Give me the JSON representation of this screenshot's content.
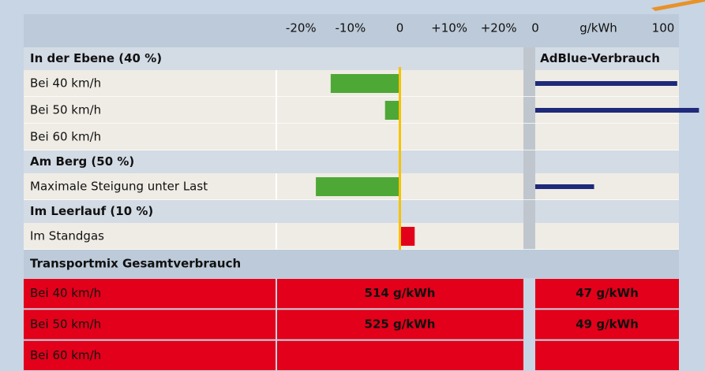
{
  "chart_data": {
    "type": "bar",
    "xlim": [
      -25,
      25
    ],
    "xticks": [
      {
        "value": -20,
        "label": "-20%"
      },
      {
        "value": -10,
        "label": "-10%"
      },
      0,
      {
        "value": 10,
        "label": "+10%"
      },
      {
        "value": 20,
        "label": "+20%"
      }
    ],
    "x2lim": [
      0,
      100
    ],
    "x2ticks": [
      0,
      100
    ],
    "x2label": "g/kWh",
    "adblue_title": "AdBlue-Verbrauch",
    "colors": {
      "negative": "#4ea836",
      "positive": "#e2001a",
      "adblue": "#1f2a7a",
      "zero": "#f5c400"
    },
    "sections": [
      {
        "title": "In der Ebene (40 %)",
        "rows": [
          {
            "label": "Bei 40 km/h",
            "change": -14,
            "adblue": 111
          },
          {
            "label": "Bei 50 km/h",
            "change": -3,
            "adblue": 128
          },
          {
            "label": "Bei 60 km/h",
            "change": null,
            "adblue": null
          }
        ]
      },
      {
        "title": "Am Berg (50 %)",
        "rows": [
          {
            "label": "Maximale Steigung unter Last",
            "change": -17,
            "adblue": 46
          }
        ]
      },
      {
        "title": "Im Leerlauf (10 %)",
        "rows": [
          {
            "label": "Im Standgas",
            "change": 3,
            "adblue": null
          }
        ]
      }
    ],
    "summary": {
      "title": "Transportmix Gesamtverbrauch",
      "rows": [
        {
          "label": "Bei 40 km/h",
          "total": "514 g/kWh",
          "adblue": "47 g/kWh"
        },
        {
          "label": "Bei 50 km/h",
          "total": "525 g/kWh",
          "adblue": "49 g/kWh"
        },
        {
          "label": "Bei 60 km/h",
          "total": null,
          "adblue": null
        }
      ]
    }
  }
}
